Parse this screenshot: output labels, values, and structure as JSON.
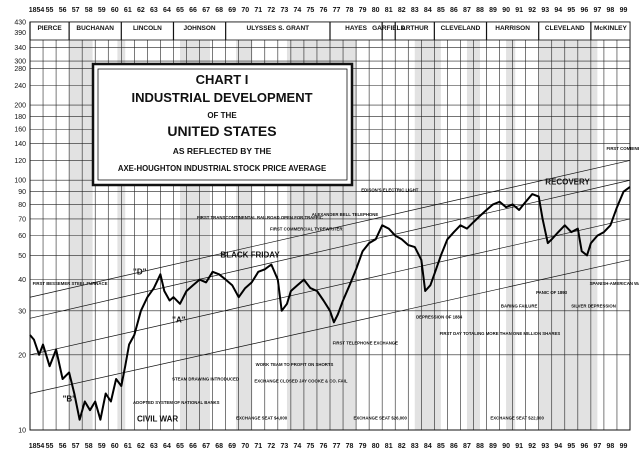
{
  "chart_data": {
    "type": "line",
    "title_lines": [
      "CHART I",
      "INDUSTRIAL DEVELOPMENT",
      "OF THE",
      "UNITED STATES",
      "AS REFLECTED BY THE",
      "AXE-HOUGHTON INDUSTRIAL STOCK PRICE AVERAGE"
    ],
    "y_scale": "log",
    "ylim": [
      10,
      430
    ],
    "y_ticks": [
      10,
      20,
      30,
      40,
      50,
      60,
      70,
      80,
      90,
      100,
      120,
      140,
      160,
      180,
      200,
      240,
      280,
      300,
      340,
      390,
      430
    ],
    "x_ticks": [
      "1854",
      "55",
      "56",
      "57",
      "58",
      "59",
      "60",
      "61",
      "62",
      "63",
      "64",
      "65",
      "66",
      "67",
      "68",
      "69",
      "70",
      "71",
      "72",
      "73",
      "74",
      "75",
      "76",
      "77",
      "78",
      "79",
      "80",
      "81",
      "82",
      "83",
      "84",
      "85",
      "86",
      "87",
      "88",
      "89",
      "90",
      "91",
      "92",
      "93",
      "94",
      "95",
      "96",
      "97",
      "98",
      "99"
    ],
    "xlim": [
      1854,
      1900
    ],
    "presidents": [
      {
        "name": "PIERCE",
        "start": 1854,
        "end": 1857
      },
      {
        "name": "BUCHANAN",
        "start": 1857,
        "end": 1861
      },
      {
        "name": "LINCOLN",
        "start": 1861,
        "end": 1865
      },
      {
        "name": "JOHNSON",
        "start": 1865,
        "end": 1869
      },
      {
        "name": "ULYSSES S. GRANT",
        "start": 1869,
        "end": 1877
      },
      {
        "name": "HAYES",
        "start": 1877,
        "end": 1881
      },
      {
        "name": "GARFIELD",
        "start": 1881,
        "end": 1882
      },
      {
        "name": "ARTHUR",
        "start": 1882,
        "end": 1885
      },
      {
        "name": "CLEVELAND",
        "start": 1885,
        "end": 1889
      },
      {
        "name": "HARRISON",
        "start": 1889,
        "end": 1893
      },
      {
        "name": "CLEVELAND",
        "start": 1893,
        "end": 1897
      },
      {
        "name": "McKINLEY",
        "start": 1897,
        "end": 1900
      }
    ],
    "shaded_periods": [
      [
        1857,
        1858.8
      ],
      [
        1860.7,
        1861.3
      ],
      [
        1865.5,
        1867.8
      ],
      [
        1869.8,
        1871
      ],
      [
        1873.7,
        1879
      ],
      [
        1883.5,
        1885.5
      ],
      [
        1887.5,
        1888.5
      ],
      [
        1890.5,
        1891.2
      ],
      [
        1893,
        1897.5
      ]
    ],
    "series": [
      {
        "x": [
          1854,
          1854.3,
          1854.7,
          1855,
          1855.5,
          1856,
          1856.5,
          1857,
          1857.4,
          1857.8,
          1858.2,
          1858.6,
          1859,
          1859.4,
          1859.8,
          1860.2,
          1860.6,
          1861,
          1861.3,
          1861.6,
          1862,
          1862.5,
          1863,
          1863.5,
          1864,
          1864.3,
          1864.7,
          1865,
          1865.5,
          1866,
          1866.5,
          1867,
          1867.5,
          1868,
          1868.5,
          1869,
          1869.5,
          1870,
          1870.5,
          1871,
          1871.5,
          1872,
          1872.5,
          1873,
          1873.3,
          1873.7,
          1874,
          1874.5,
          1875,
          1875.5,
          1876,
          1876.5,
          1877,
          1877.3,
          1877.6,
          1878,
          1878.5,
          1879,
          1879.5,
          1880,
          1880.5,
          1881,
          1881.5,
          1882,
          1882.5,
          1883,
          1883.5,
          1884,
          1884.3,
          1884.7,
          1885,
          1885.5,
          1886,
          1886.5,
          1887,
          1887.5,
          1888,
          1888.5,
          1889,
          1889.5,
          1890,
          1890.5,
          1891,
          1891.5,
          1892,
          1892.5,
          1893,
          1893.3,
          1893.7,
          1894,
          1894.5,
          1895,
          1895.5,
          1896,
          1896.3,
          1896.7,
          1897,
          1897.5,
          1898,
          1898.5,
          1899,
          1899.5,
          1900
        ],
        "values": [
          24,
          23,
          20,
          22,
          18,
          21,
          16,
          17,
          14,
          11,
          13,
          12,
          13,
          11,
          14,
          13,
          16,
          15,
          18,
          22,
          24,
          30,
          34,
          37,
          42,
          36,
          33,
          34,
          32,
          36,
          38,
          40,
          39,
          43,
          42,
          40,
          38,
          34,
          37,
          39,
          43,
          44,
          46,
          40,
          30,
          32,
          36,
          38,
          40,
          37,
          36,
          33,
          30,
          27,
          29,
          33,
          38,
          44,
          52,
          56,
          58,
          66,
          64,
          60,
          58,
          55,
          54,
          48,
          36,
          38,
          42,
          50,
          58,
          62,
          66,
          64,
          68,
          72,
          76,
          80,
          82,
          78,
          80,
          76,
          82,
          88,
          86,
          70,
          56,
          58,
          62,
          66,
          62,
          64,
          52,
          50,
          56,
          60,
          62,
          66,
          78,
          90,
          94
        ]
      }
    ],
    "trend_lines": [
      {
        "x": [
          1854,
          1900
        ],
        "values": [
          34,
          120
        ]
      },
      {
        "x": [
          1854,
          1900
        ],
        "values": [
          28,
          100
        ]
      },
      {
        "x": [
          1854,
          1900
        ],
        "values": [
          20,
          70
        ]
      },
      {
        "x": [
          1854,
          1900
        ],
        "values": [
          14,
          48
        ]
      }
    ],
    "annotations": [
      {
        "text": "FIRST BESSEMER STEEL FURNACE",
        "x": 1854.2,
        "value": 38
      },
      {
        "text": "\"B\"",
        "x": 1856.5,
        "value": 13
      },
      {
        "text": "\"D\"",
        "x": 1861.9,
        "value": 42
      },
      {
        "text": "\"A\"",
        "x": 1864.9,
        "value": 27
      },
      {
        "text": "CIVIL WAR",
        "x": 1862.2,
        "value": 10.8
      },
      {
        "text": "ADOPTED SYSTEM OF NATIONAL BANKS",
        "x": 1861.9,
        "value": 12.7
      },
      {
        "text": "STEAM DRAWING INTRODUCED",
        "x": 1864.9,
        "value": 15.8
      },
      {
        "text": "FIRST TRANSCONTINENTAL RAILROAD OPEN FOR TRAFFIC",
        "x": 1866.8,
        "value": 70
      },
      {
        "text": "BLACK FRIDAY",
        "x": 1868.6,
        "value": 49
      },
      {
        "text": "FIRST COMMERCIAL TYPEWRITER",
        "x": 1872.4,
        "value": 63
      },
      {
        "text": "ALEXANDER BELL TELEPHONE",
        "x": 1875.6,
        "value": 72
      },
      {
        "text": "EDISON'S ELECTRIC LIGHT",
        "x": 1879.4,
        "value": 90
      },
      {
        "text": "FIRST TELEPHONE EXCHANGE",
        "x": 1877.2,
        "value": 22
      },
      {
        "text": "EXCHANGE SEAT $4,000",
        "x": 1869.8,
        "value": 11
      },
      {
        "text": "WORK TEAM TO PROFIT ON SHORTS",
        "x": 1871.3,
        "value": 18
      },
      {
        "text": "EXCHANGE CLOSED JAY COOKE & CO. FAIL",
        "x": 1871.2,
        "value": 15.5
      },
      {
        "text": "EXCHANGE SEAT $26,000",
        "x": 1878.8,
        "value": 11
      },
      {
        "text": "DEPRESSION OF 1884",
        "x": 1883.6,
        "value": 28
      },
      {
        "text": "FIRST DAY TOTALING MORE THAN ONE MILLION SHARES",
        "x": 1885.4,
        "value": 24
      },
      {
        "text": "BARING FAILURE",
        "x": 1890.1,
        "value": 31
      },
      {
        "text": "PANIC OF 1893",
        "x": 1892.8,
        "value": 35
      },
      {
        "text": "RECOVERY",
        "x": 1893.5,
        "value": 96
      },
      {
        "text": "SPANISH-AMERICAN WAR",
        "x": 1896.9,
        "value": 38
      },
      {
        "text": "SILVER DEPRESSION",
        "x": 1895.5,
        "value": 31
      },
      {
        "text": "FIRST COMBINED PRODUCTION AUTOMOBILES",
        "x": 1898.2,
        "value": 132
      },
      {
        "text": "EXCHANGE SEAT $22,000",
        "x": 1889.3,
        "value": 11
      }
    ]
  }
}
